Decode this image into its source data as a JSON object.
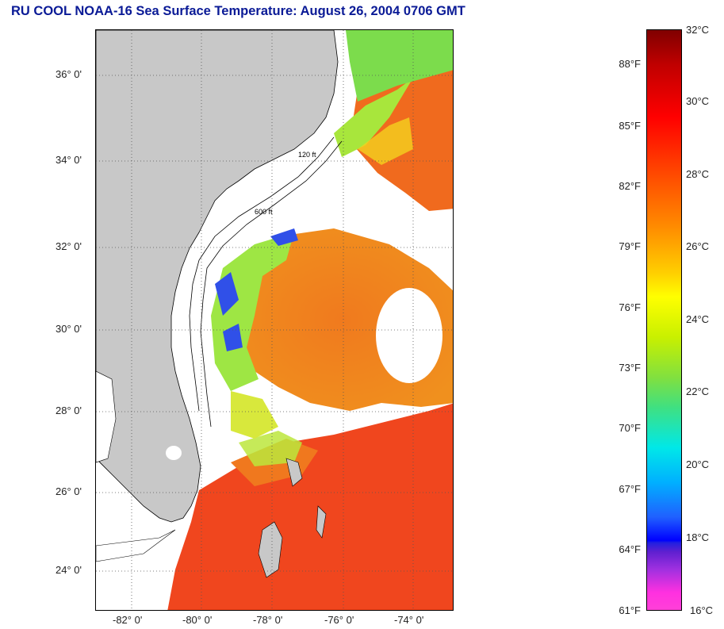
{
  "title": "RU COOL  NOAA-16  Sea Surface Temperature:  August 26, 2004 0706 GMT",
  "latitude_labels": [
    "36° 0'",
    "34° 0'",
    "32° 0'",
    "30° 0'",
    "28° 0'",
    "26° 0'",
    "24° 0'"
  ],
  "longitude_labels": [
    "-82° 0'",
    "-80° 0'",
    "-78° 0'",
    "-76° 0'",
    "-74° 0'"
  ],
  "colorbar": {
    "fahrenheit_labels": [
      "88°F",
      "85°F",
      "82°F",
      "79°F",
      "76°F",
      "73°F",
      "70°F",
      "67°F",
      "64°F",
      "61°F"
    ],
    "celsius_labels": [
      "32°C",
      "30°C",
      "28°C",
      "26°C",
      "24°C",
      "22°C",
      "20°C",
      "18°C",
      "16°C"
    ],
    "range_celsius": [
      16,
      32
    ]
  },
  "isobath_labels": [
    "120 ft",
    "600 ft"
  ],
  "colors": {
    "title": "#0a1a96",
    "land": "#c8c8c8",
    "cloud": "#ffffff",
    "warm_water": "#f0641e"
  }
}
